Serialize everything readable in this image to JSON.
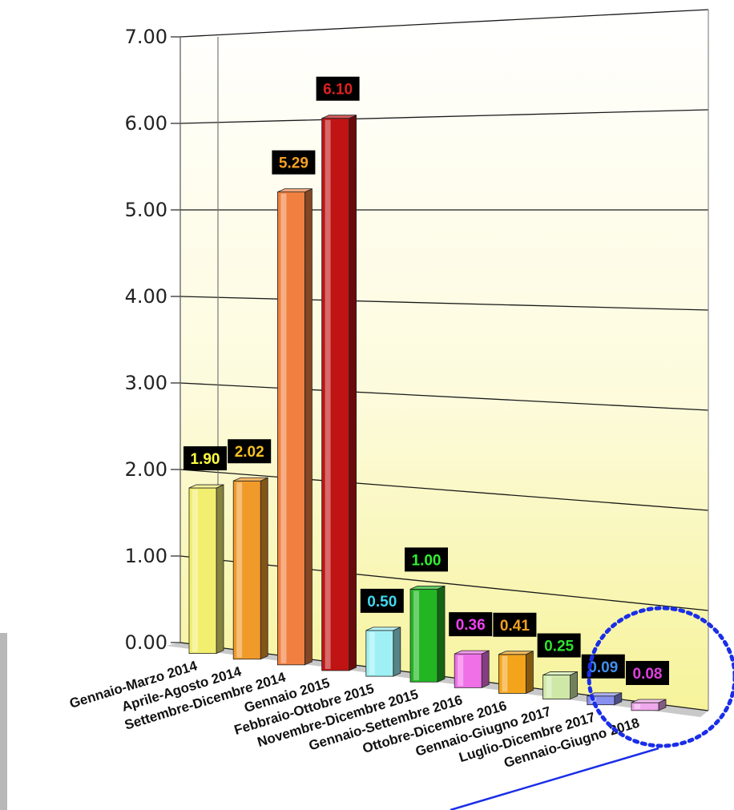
{
  "chart_data": {
    "type": "bar",
    "title": "",
    "xlabel": "",
    "ylabel": "",
    "ylim": [
      0,
      7
    ],
    "yticks": [
      "0.00",
      "1.00",
      "2.00",
      "3.00",
      "4.00",
      "5.00",
      "6.00",
      "7.00"
    ],
    "grid": true,
    "legend": "none",
    "categories": [
      "Gennaio-Marzo 2014",
      "Aprile-Agosto 2014",
      "Settembre-Dicembre 2014",
      "Gennaio 2015",
      "Febbraio-Ottobre 2015",
      "Novembre-Dicembre 2015",
      "Gennaio-Settembre 2016",
      "Ottobre-Dicembre 2016",
      "Gennaio-Giugno 2017",
      "Luglio-Dicembre 2017",
      "Gennaio-Giugno 2018"
    ],
    "values": [
      1.9,
      2.02,
      5.29,
      6.1,
      0.5,
      1.0,
      0.36,
      0.41,
      0.25,
      0.09,
      0.08
    ],
    "value_labels": [
      "1.90",
      "2.02",
      "5.29",
      "6.10",
      "0.50",
      "1.00",
      "0.36",
      "0.41",
      "0.25",
      "0.09",
      "0.08"
    ],
    "bar_colors": [
      "#f2ee70",
      "#f09a2a",
      "#f08040",
      "#c01414",
      "#9ef0f4",
      "#22b622",
      "#f070e8",
      "#f4a41a",
      "#cfe8a8",
      "#8a90f0",
      "#f0a8ec"
    ],
    "label_text_colors": [
      "#ffff40",
      "#f5c020",
      "#f5a020",
      "#e02020",
      "#40d8f0",
      "#30f030",
      "#f040f0",
      "#f0a020",
      "#30e030",
      "#4090f0",
      "#e040e0"
    ],
    "highlight": "dotted circle around last two bars"
  }
}
